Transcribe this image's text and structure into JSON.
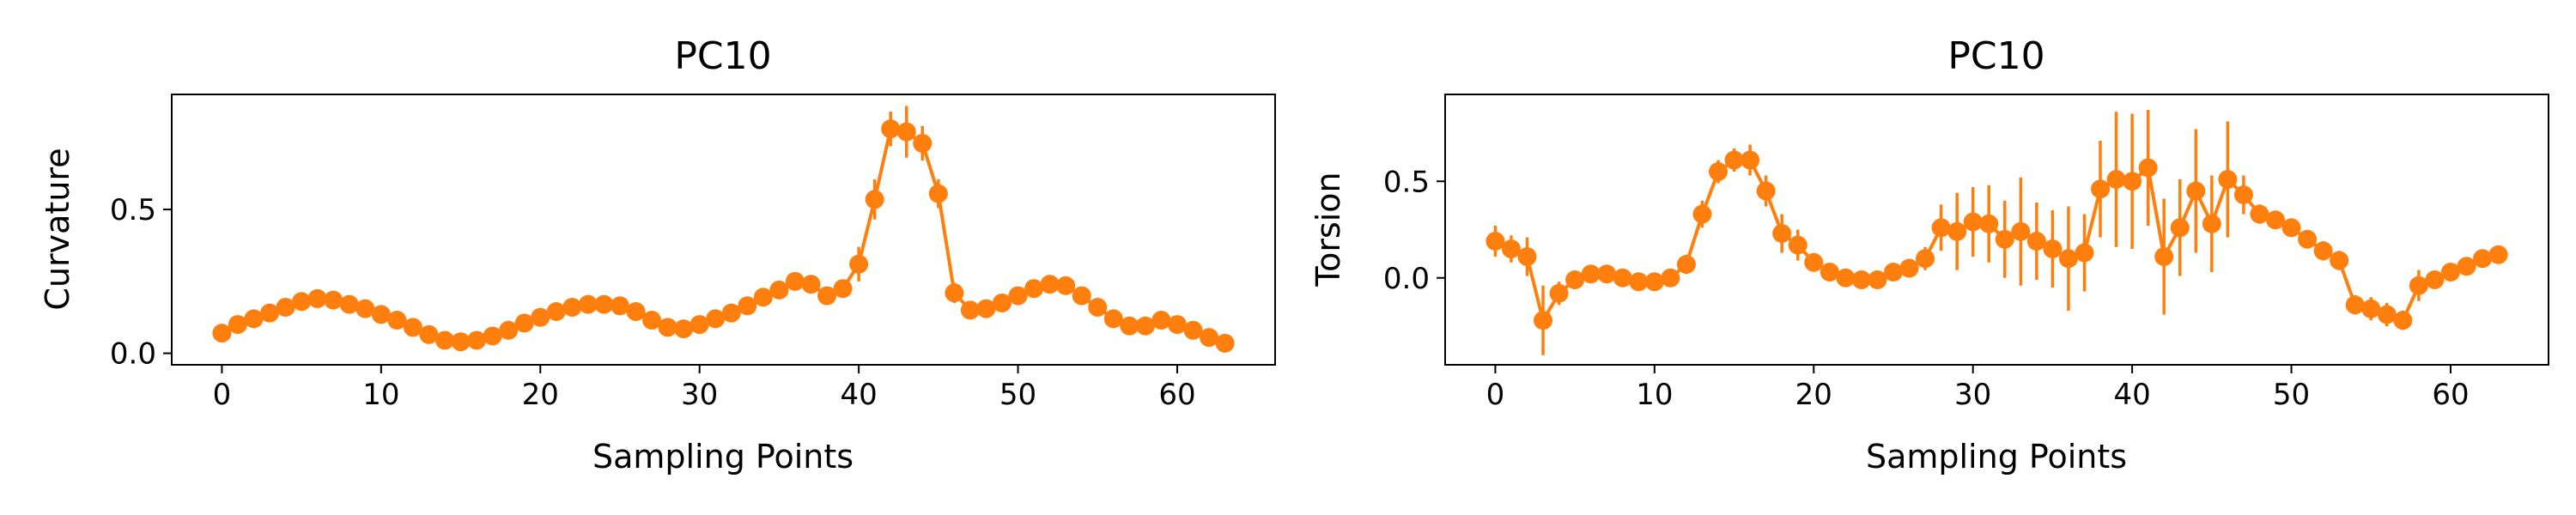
{
  "colors": {
    "series": "#ff7f0e",
    "axis": "#000000",
    "background": "#ffffff"
  },
  "chart_data": [
    {
      "type": "line",
      "title": "PC10",
      "xlabel": "Sampling Points",
      "ylabel": "Curvature",
      "xlim": [
        -3.15,
        66.15
      ],
      "ylim": [
        -0.04,
        0.9
      ],
      "xticks": [
        0,
        10,
        20,
        30,
        40,
        50,
        60
      ],
      "xtick_labels": [
        "0",
        "10",
        "20",
        "30",
        "40",
        "50",
        "60"
      ],
      "yticks": [
        0.0,
        0.5
      ],
      "ytick_labels": [
        "0.0",
        "0.5"
      ],
      "grid": false,
      "markers": true,
      "x": [
        0,
        1,
        2,
        3,
        4,
        5,
        6,
        7,
        8,
        9,
        10,
        11,
        12,
        13,
        14,
        15,
        16,
        17,
        18,
        19,
        20,
        21,
        22,
        23,
        24,
        25,
        26,
        27,
        28,
        29,
        30,
        31,
        32,
        33,
        34,
        35,
        36,
        37,
        38,
        39,
        40,
        41,
        42,
        43,
        44,
        45,
        46,
        47,
        48,
        49,
        50,
        51,
        52,
        53,
        54,
        55,
        56,
        57,
        58,
        59,
        60,
        61,
        62,
        63
      ],
      "y": [
        0.07,
        0.1,
        0.12,
        0.14,
        0.16,
        0.18,
        0.19,
        0.185,
        0.17,
        0.155,
        0.135,
        0.115,
        0.09,
        0.065,
        0.045,
        0.04,
        0.045,
        0.06,
        0.08,
        0.105,
        0.125,
        0.145,
        0.16,
        0.17,
        0.17,
        0.165,
        0.145,
        0.115,
        0.09,
        0.085,
        0.1,
        0.12,
        0.14,
        0.165,
        0.195,
        0.22,
        0.25,
        0.24,
        0.2,
        0.225,
        0.31,
        0.535,
        0.78,
        0.77,
        0.73,
        0.555,
        0.21,
        0.15,
        0.155,
        0.175,
        0.2,
        0.225,
        0.24,
        0.235,
        0.2,
        0.16,
        0.12,
        0.095,
        0.095,
        0.115,
        0.1,
        0.08,
        0.055,
        0.035
      ],
      "err": [
        0.01,
        0.01,
        0.01,
        0.01,
        0.01,
        0.01,
        0.01,
        0.01,
        0.01,
        0.01,
        0.01,
        0.01,
        0.01,
        0.01,
        0.01,
        0.01,
        0.01,
        0.01,
        0.01,
        0.01,
        0.01,
        0.01,
        0.01,
        0.01,
        0.01,
        0.01,
        0.01,
        0.01,
        0.01,
        0.01,
        0.01,
        0.01,
        0.01,
        0.01,
        0.01,
        0.01,
        0.015,
        0.02,
        0.02,
        0.03,
        0.06,
        0.07,
        0.06,
        0.09,
        0.06,
        0.05,
        0.035,
        0.02,
        0.015,
        0.01,
        0.01,
        0.01,
        0.01,
        0.01,
        0.01,
        0.01,
        0.01,
        0.01,
        0.01,
        0.01,
        0.01,
        0.01,
        0.01,
        0.01
      ]
    },
    {
      "type": "line",
      "title": "PC10",
      "xlabel": "Sampling Points",
      "ylabel": "Torsion",
      "xlim": [
        -3.15,
        66.15
      ],
      "ylim": [
        -0.45,
        0.95
      ],
      "xticks": [
        0,
        10,
        20,
        30,
        40,
        50,
        60
      ],
      "xtick_labels": [
        "0",
        "10",
        "20",
        "30",
        "40",
        "50",
        "60"
      ],
      "yticks": [
        0.0,
        0.5
      ],
      "ytick_labels": [
        "0.0",
        "0.5"
      ],
      "grid": false,
      "markers": true,
      "x": [
        0,
        1,
        2,
        3,
        4,
        5,
        6,
        7,
        8,
        9,
        10,
        11,
        12,
        13,
        14,
        15,
        16,
        17,
        18,
        19,
        20,
        21,
        22,
        23,
        24,
        25,
        26,
        27,
        28,
        29,
        30,
        31,
        32,
        33,
        34,
        35,
        36,
        37,
        38,
        39,
        40,
        41,
        42,
        43,
        44,
        45,
        46,
        47,
        48,
        49,
        50,
        51,
        52,
        53,
        54,
        55,
        56,
        57,
        58,
        59,
        60,
        61,
        62,
        63
      ],
      "y": [
        0.19,
        0.15,
        0.11,
        -0.22,
        -0.08,
        -0.01,
        0.02,
        0.02,
        0.0,
        -0.02,
        -0.02,
        0.0,
        0.07,
        0.33,
        0.55,
        0.61,
        0.61,
        0.45,
        0.23,
        0.17,
        0.08,
        0.03,
        0.0,
        -0.01,
        -0.01,
        0.03,
        0.05,
        0.1,
        0.26,
        0.24,
        0.29,
        0.28,
        0.2,
        0.24,
        0.19,
        0.15,
        0.1,
        0.13,
        0.46,
        0.51,
        0.5,
        0.57,
        0.11,
        0.26,
        0.45,
        0.28,
        0.51,
        0.43,
        0.33,
        0.3,
        0.26,
        0.2,
        0.14,
        0.09,
        -0.14,
        -0.16,
        -0.19,
        -0.22,
        -0.04,
        -0.01,
        0.03,
        0.06,
        0.1,
        0.12
      ],
      "err": [
        0.08,
        0.07,
        0.1,
        0.18,
        0.06,
        0.04,
        0.03,
        0.03,
        0.03,
        0.03,
        0.03,
        0.03,
        0.05,
        0.07,
        0.06,
        0.06,
        0.08,
        0.08,
        0.1,
        0.08,
        0.04,
        0.03,
        0.03,
        0.03,
        0.03,
        0.03,
        0.04,
        0.06,
        0.12,
        0.2,
        0.18,
        0.2,
        0.2,
        0.28,
        0.2,
        0.2,
        0.27,
        0.2,
        0.25,
        0.35,
        0.35,
        0.3,
        0.3,
        0.25,
        0.32,
        0.25,
        0.3,
        0.1,
        0.05,
        0.04,
        0.04,
        0.04,
        0.05,
        0.05,
        0.05,
        0.06,
        0.06,
        0.05,
        0.08,
        0.04,
        0.03,
        0.03,
        0.03,
        0.03
      ]
    }
  ]
}
